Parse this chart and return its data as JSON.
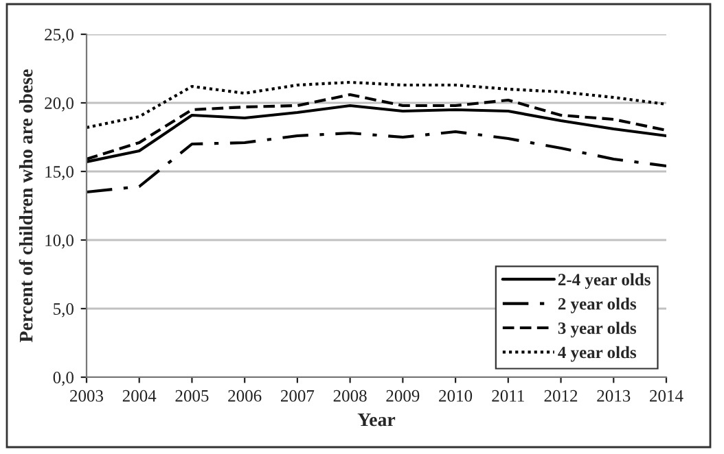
{
  "chart_data": {
    "type": "line",
    "xlabel": "Year",
    "ylabel": "Percent of children who are obese",
    "x": [
      2003,
      2004,
      2005,
      2006,
      2007,
      2008,
      2009,
      2010,
      2011,
      2012,
      2013,
      2014
    ],
    "xlim": [
      2003,
      2014
    ],
    "xticks": [
      2003,
      2004,
      2005,
      2006,
      2007,
      2008,
      2009,
      2010,
      2011,
      2012,
      2013,
      2014
    ],
    "ylim": [
      0,
      25
    ],
    "yticks": [
      {
        "value": 0,
        "label": "0,0"
      },
      {
        "value": 5,
        "label": "5,0"
      },
      {
        "value": 10,
        "label": "10,0"
      },
      {
        "value": 15,
        "label": "15,0"
      },
      {
        "value": 20,
        "label": "20,0"
      },
      {
        "value": 25,
        "label": "25,0"
      }
    ],
    "grid": "y",
    "legend": "bottom right",
    "marker": "none",
    "series": [
      {
        "name": "2-4 year olds",
        "color": "#000000",
        "line_style": "solid",
        "values": [
          15.7,
          16.5,
          19.1,
          18.9,
          19.3,
          19.8,
          19.4,
          19.5,
          19.4,
          18.7,
          18.1,
          17.6
        ]
      },
      {
        "name": "2 year olds",
        "color": "#000000",
        "line_style": "dashdot",
        "values": [
          13.5,
          13.9,
          17.0,
          17.1,
          17.6,
          17.8,
          17.5,
          17.9,
          17.4,
          16.7,
          15.9,
          15.4
        ]
      },
      {
        "name": "3 year olds",
        "color": "#000000",
        "line_style": "dashed",
        "values": [
          15.9,
          17.1,
          19.5,
          19.7,
          19.8,
          20.6,
          19.8,
          19.8,
          20.2,
          19.1,
          18.8,
          18.0
        ]
      },
      {
        "name": "4 year olds",
        "color": "#000000",
        "line_style": "dotted",
        "values": [
          18.2,
          19.0,
          21.2,
          20.7,
          21.3,
          21.5,
          21.3,
          21.3,
          21.0,
          20.8,
          20.4,
          19.9
        ]
      }
    ]
  }
}
